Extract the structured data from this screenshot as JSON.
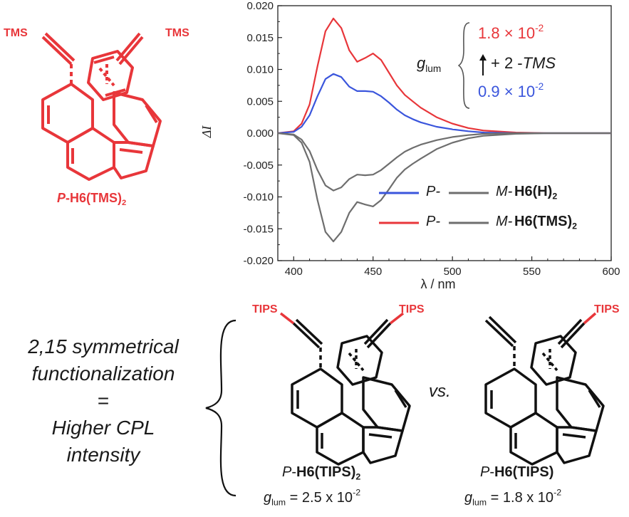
{
  "molecules": {
    "top": {
      "prefix": "P",
      "name": "-H6(TMS)",
      "sub": "2",
      "sub_left": "TMS",
      "sub_right": "TMS"
    },
    "left": {
      "prefix": "P",
      "name": "H6(TIPS)",
      "sub": "2",
      "sub_left": "TIPS",
      "sub_right": "TIPS",
      "glum_value": "= 2.5 x 10",
      "glum_exp": "-2"
    },
    "right": {
      "prefix": "P",
      "name": "H6(TIPS)",
      "sub_right": "TIPS",
      "glum_value": "= 1.8 x 10",
      "glum_exp": "-2"
    }
  },
  "glum_symbol": "g",
  "glum_sub": "lum",
  "vs_text": "vs.",
  "conclusion": [
    "2,15 symmetrical",
    "functionalization",
    "=",
    "Higher CPL",
    "intensity"
  ],
  "annotation": {
    "value_high": "1.8 × 10",
    "value_high_exp": "-2",
    "value_low": "0.9 × 10",
    "value_low_exp": "-2",
    "arrow_text": "+ 2 -",
    "arrow_text_italic": "TMS"
  },
  "colors": {
    "red": "#e8363a",
    "blue": "#3a55dc",
    "gray": "#6e6e6e"
  },
  "chart_data": {
    "type": "line",
    "xlabel": "λ / nm",
    "ylabel": "ΔI",
    "xlim": [
      390,
      600
    ],
    "ylim": [
      -0.02,
      0.02
    ],
    "xticks": [
      400,
      450,
      500,
      550,
      600
    ],
    "yticks": [
      -0.02,
      -0.015,
      -0.01,
      -0.005,
      0.0,
      0.005,
      0.01,
      0.015,
      0.02
    ],
    "ytick_labels": [
      "-0.020",
      "-0.015",
      "-0.010",
      "-0.005",
      "0.000",
      "0.005",
      "0.010",
      "0.015",
      "0.020"
    ],
    "legend": {
      "placement": "bottom-right",
      "entries": [
        {
          "p_label": "P-",
          "m_label": "M-",
          "compound": "H6(H)",
          "compound_sub": "2",
          "p_color": "#3a55dc",
          "m_color": "#6e6e6e"
        },
        {
          "p_label": "P-",
          "m_label": "M-",
          "compound": "H6(TMS)",
          "compound_sub": "2",
          "p_color": "#e8363a",
          "m_color": "#6e6e6e"
        }
      ]
    },
    "series": [
      {
        "color": "#e8363a",
        "x": [
          390,
          400,
          405,
          410,
          415,
          420,
          425,
          430,
          435,
          440,
          445,
          450,
          455,
          460,
          465,
          470,
          475,
          480,
          490,
          500,
          510,
          520,
          540,
          560,
          600
        ],
        "y": [
          0.0,
          0.0003,
          0.0015,
          0.0045,
          0.0105,
          0.016,
          0.018,
          0.0165,
          0.013,
          0.0112,
          0.0118,
          0.0125,
          0.0115,
          0.0095,
          0.0075,
          0.006,
          0.005,
          0.004,
          0.0025,
          0.0015,
          0.0008,
          0.0004,
          0.0001,
          0.0,
          0.0
        ]
      },
      {
        "color": "#3a55dc",
        "x": [
          390,
          400,
          405,
          410,
          415,
          420,
          425,
          430,
          435,
          440,
          445,
          450,
          455,
          460,
          465,
          470,
          475,
          480,
          490,
          500,
          510,
          520,
          540,
          560,
          600
        ],
        "y": [
          0.0,
          0.0002,
          0.001,
          0.0028,
          0.0058,
          0.0085,
          0.0093,
          0.0088,
          0.0073,
          0.0066,
          0.0066,
          0.0065,
          0.0058,
          0.0048,
          0.0037,
          0.0028,
          0.0022,
          0.0017,
          0.001,
          0.0006,
          0.0003,
          0.0001,
          0.0,
          0.0,
          0.0
        ]
      },
      {
        "color": "#6e6e6e",
        "x": [
          390,
          400,
          405,
          410,
          415,
          420,
          425,
          430,
          435,
          440,
          445,
          450,
          455,
          460,
          465,
          470,
          475,
          480,
          490,
          500,
          510,
          520,
          540,
          560,
          600
        ],
        "y": [
          0.0,
          -0.0003,
          -0.0015,
          -0.0045,
          -0.0105,
          -0.0155,
          -0.017,
          -0.0155,
          -0.0125,
          -0.0108,
          -0.0112,
          -0.0115,
          -0.0105,
          -0.0088,
          -0.007,
          -0.0057,
          -0.0048,
          -0.004,
          -0.0025,
          -0.0015,
          -0.0008,
          -0.0004,
          -0.0001,
          0.0,
          0.0
        ]
      },
      {
        "color": "#6e6e6e",
        "x": [
          390,
          400,
          405,
          410,
          415,
          420,
          425,
          430,
          435,
          440,
          445,
          450,
          455,
          460,
          465,
          470,
          475,
          480,
          490,
          500,
          510,
          520,
          540,
          560,
          600
        ],
        "y": [
          0.0,
          -0.0002,
          -0.001,
          -0.0028,
          -0.0058,
          -0.0082,
          -0.009,
          -0.0085,
          -0.0072,
          -0.0065,
          -0.0066,
          -0.0065,
          -0.0058,
          -0.0048,
          -0.0038,
          -0.0029,
          -0.0023,
          -0.0018,
          -0.0011,
          -0.0006,
          -0.0003,
          -0.0001,
          0.0,
          0.0,
          0.0
        ]
      }
    ]
  }
}
